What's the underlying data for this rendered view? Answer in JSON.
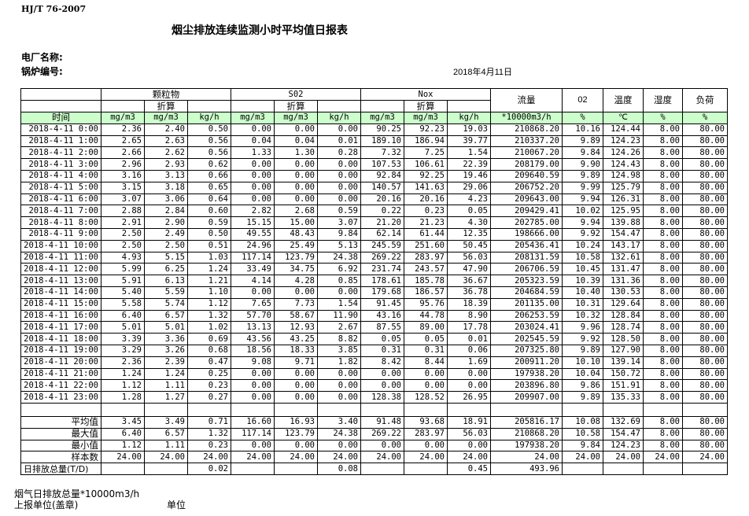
{
  "header": {
    "standard": "HJ/T  76-2007",
    "title": "烟尘排放连续监测小时平均值日报表",
    "plant_label": "电厂名称:",
    "boiler_label": "锅炉编号:",
    "date": "2018年4月11日"
  },
  "table": {
    "groups": {
      "particulate": "颗粒物",
      "so2": "S02",
      "nox": "Nox",
      "flow": "流量",
      "o2": "02",
      "temp": "温度",
      "humidity": "湿度",
      "load": "负荷",
      "converted": "折算"
    },
    "units": [
      "时间",
      "mg/m3",
      "mg/m3",
      "kg/h",
      "mg/m3",
      "mg/m3",
      "kg/h",
      "mg/m3",
      "mg/m3",
      "kg/h",
      "*10000m3/h",
      "%",
      "℃",
      "%",
      "%"
    ],
    "header_color": "#ccffcc",
    "rows": [
      [
        "2018-4-11 0:00",
        "2.36",
        "2.40",
        "0.50",
        "0.00",
        "0.00",
        "0.00",
        "90.25",
        "92.23",
        "19.03",
        "210868.20",
        "10.16",
        "124.44",
        "8.00",
        "80.00"
      ],
      [
        "2018-4-11 1:00",
        "2.65",
        "2.63",
        "0.56",
        "0.04",
        "0.04",
        "0.01",
        "189.10",
        "186.94",
        "39.77",
        "210337.20",
        "9.89",
        "124.23",
        "8.00",
        "80.00"
      ],
      [
        "2018-4-11 2:00",
        "2.66",
        "2.62",
        "0.56",
        "1.33",
        "1.30",
        "0.28",
        "7.32",
        "7.25",
        "1.54",
        "210067.20",
        "9.84",
        "124.26",
        "8.00",
        "80.00"
      ],
      [
        "2018-4-11 3:00",
        "2.96",
        "2.93",
        "0.62",
        "0.00",
        "0.00",
        "0.00",
        "107.53",
        "106.61",
        "22.39",
        "208179.00",
        "9.90",
        "124.43",
        "8.00",
        "80.00"
      ],
      [
        "2018-4-11 4:00",
        "3.16",
        "3.13",
        "0.66",
        "0.00",
        "0.00",
        "0.00",
        "92.84",
        "92.25",
        "19.46",
        "209640.59",
        "9.89",
        "124.98",
        "8.00",
        "80.00"
      ],
      [
        "2018-4-11 5:00",
        "3.15",
        "3.18",
        "0.65",
        "0.00",
        "0.00",
        "0.00",
        "140.57",
        "141.63",
        "29.06",
        "206752.20",
        "9.99",
        "125.79",
        "8.00",
        "80.00"
      ],
      [
        "2018-4-11 6:00",
        "3.07",
        "3.06",
        "0.64",
        "0.00",
        "0.00",
        "0.00",
        "20.16",
        "20.16",
        "4.23",
        "209643.00",
        "9.94",
        "126.31",
        "8.00",
        "80.00"
      ],
      [
        "2018-4-11 7:00",
        "2.88",
        "2.84",
        "0.60",
        "2.82",
        "2.68",
        "0.59",
        "0.22",
        "0.23",
        "0.05",
        "209429.41",
        "10.02",
        "125.95",
        "8.00",
        "80.00"
      ],
      [
        "2018-4-11 8:00",
        "2.91",
        "2.90",
        "0.59",
        "15.15",
        "15.00",
        "3.07",
        "21.20",
        "21.23",
        "4.30",
        "202785.00",
        "9.94",
        "139.88",
        "8.00",
        "80.00"
      ],
      [
        "2018-4-11 9:00",
        "2.50",
        "2.49",
        "0.50",
        "49.55",
        "48.43",
        "9.84",
        "62.14",
        "61.44",
        "12.35",
        "198666.00",
        "9.92",
        "154.47",
        "8.00",
        "80.00"
      ],
      [
        "2018-4-11 10:00",
        "2.50",
        "2.50",
        "0.51",
        "24.96",
        "25.49",
        "5.13",
        "245.59",
        "251.60",
        "50.45",
        "205436.41",
        "10.24",
        "143.17",
        "8.00",
        "80.00"
      ],
      [
        "2018-4-11 11:00",
        "4.93",
        "5.15",
        "1.03",
        "117.14",
        "123.79",
        "24.38",
        "269.22",
        "283.97",
        "56.03",
        "208131.59",
        "10.58",
        "132.61",
        "8.00",
        "80.00"
      ],
      [
        "2018-4-11 12:00",
        "5.99",
        "6.25",
        "1.24",
        "33.49",
        "34.75",
        "6.92",
        "231.74",
        "243.57",
        "47.90",
        "206706.59",
        "10.45",
        "131.47",
        "8.00",
        "80.00"
      ],
      [
        "2018-4-11 13:00",
        "5.91",
        "6.13",
        "1.21",
        "4.14",
        "4.28",
        "0.85",
        "178.61",
        "185.78",
        "36.67",
        "205323.59",
        "10.39",
        "131.36",
        "8.00",
        "80.00"
      ],
      [
        "2018-4-11 14:00",
        "5.40",
        "5.59",
        "1.10",
        "0.00",
        "0.00",
        "0.00",
        "179.68",
        "186.57",
        "36.78",
        "204684.59",
        "10.40",
        "130.53",
        "8.00",
        "80.00"
      ],
      [
        "2018-4-11 15:00",
        "5.58",
        "5.74",
        "1.12",
        "7.65",
        "7.73",
        "1.54",
        "91.45",
        "95.76",
        "18.39",
        "201135.00",
        "10.31",
        "129.64",
        "8.00",
        "80.00"
      ],
      [
        "2018-4-11 16:00",
        "6.40",
        "6.57",
        "1.32",
        "57.70",
        "58.67",
        "11.90",
        "43.16",
        "44.78",
        "8.90",
        "206253.59",
        "10.32",
        "128.84",
        "8.00",
        "80.00"
      ],
      [
        "2018-4-11 17:00",
        "5.01",
        "5.01",
        "1.02",
        "13.13",
        "12.93",
        "2.67",
        "87.55",
        "89.00",
        "17.78",
        "203024.41",
        "9.96",
        "128.74",
        "8.00",
        "80.00"
      ],
      [
        "2018-4-11 18:00",
        "3.39",
        "3.36",
        "0.69",
        "43.56",
        "43.25",
        "8.82",
        "0.05",
        "0.05",
        "0.01",
        "202545.59",
        "9.92",
        "128.50",
        "8.00",
        "80.00"
      ],
      [
        "2018-4-11 19:00",
        "3.29",
        "3.26",
        "0.68",
        "18.56",
        "18.33",
        "3.85",
        "0.31",
        "0.31",
        "0.06",
        "207325.80",
        "9.89",
        "127.90",
        "8.00",
        "80.00"
      ],
      [
        "2018-4-11 20:00",
        "2.36",
        "2.39",
        "0.47",
        "9.08",
        "9.71",
        "1.82",
        "8.42",
        "8.44",
        "1.69",
        "200911.20",
        "10.10",
        "139.14",
        "8.00",
        "80.00"
      ],
      [
        "2018-4-11 21:00",
        "1.24",
        "1.24",
        "0.25",
        "0.00",
        "0.00",
        "0.00",
        "0.00",
        "0.00",
        "0.00",
        "197938.20",
        "10.04",
        "150.72",
        "8.00",
        "80.00"
      ],
      [
        "2018-4-11 22:00",
        "1.12",
        "1.11",
        "0.23",
        "0.00",
        "0.00",
        "0.00",
        "0.00",
        "0.00",
        "0.00",
        "203896.80",
        "9.86",
        "151.91",
        "8.00",
        "80.00"
      ],
      [
        "2018-4-11 23:00",
        "1.28",
        "1.27",
        "0.27",
        "0.00",
        "0.00",
        "0.00",
        "128.38",
        "128.52",
        "26.95",
        "209907.00",
        "9.89",
        "135.33",
        "8.00",
        "80.00"
      ]
    ],
    "summary": [
      [
        "平均值",
        "3.45",
        "3.49",
        "0.71",
        "16.60",
        "16.93",
        "3.40",
        "91.48",
        "93.68",
        "18.91",
        "205816.17",
        "10.08",
        "132.69",
        "8.00",
        "80.00"
      ],
      [
        "最大值",
        "6.40",
        "6.57",
        "1.32",
        "117.14",
        "123.79",
        "24.38",
        "269.22",
        "283.97",
        "56.03",
        "210868.20",
        "10.58",
        "154.47",
        "8.00",
        "80.00"
      ],
      [
        "最小值",
        "1.12",
        "1.11",
        "0.23",
        "0.00",
        "0.00",
        "0.00",
        "0.00",
        "0.00",
        "0.00",
        "197938.20",
        "9.84",
        "124.23",
        "8.00",
        "80.00"
      ],
      [
        "样本数",
        "24.00",
        "24.00",
        "24.00",
        "24.00",
        "24.00",
        "24.00",
        "24.00",
        "24.00",
        "24.00",
        "24.00",
        "24.00",
        "24.00",
        "24.00",
        "24.00"
      ]
    ],
    "daily_total": [
      "日排放总量(T/D)",
      "",
      "",
      "0.02",
      "",
      "",
      "0.08",
      "",
      "",
      "0.45",
      "493.96",
      "",
      "",
      "",
      ""
    ]
  },
  "footer": {
    "flue_gas_total": "烟气日排放总量*10000m3/h",
    "reporting_unit": "上报单位(盖章)",
    "unit": "单位"
  }
}
